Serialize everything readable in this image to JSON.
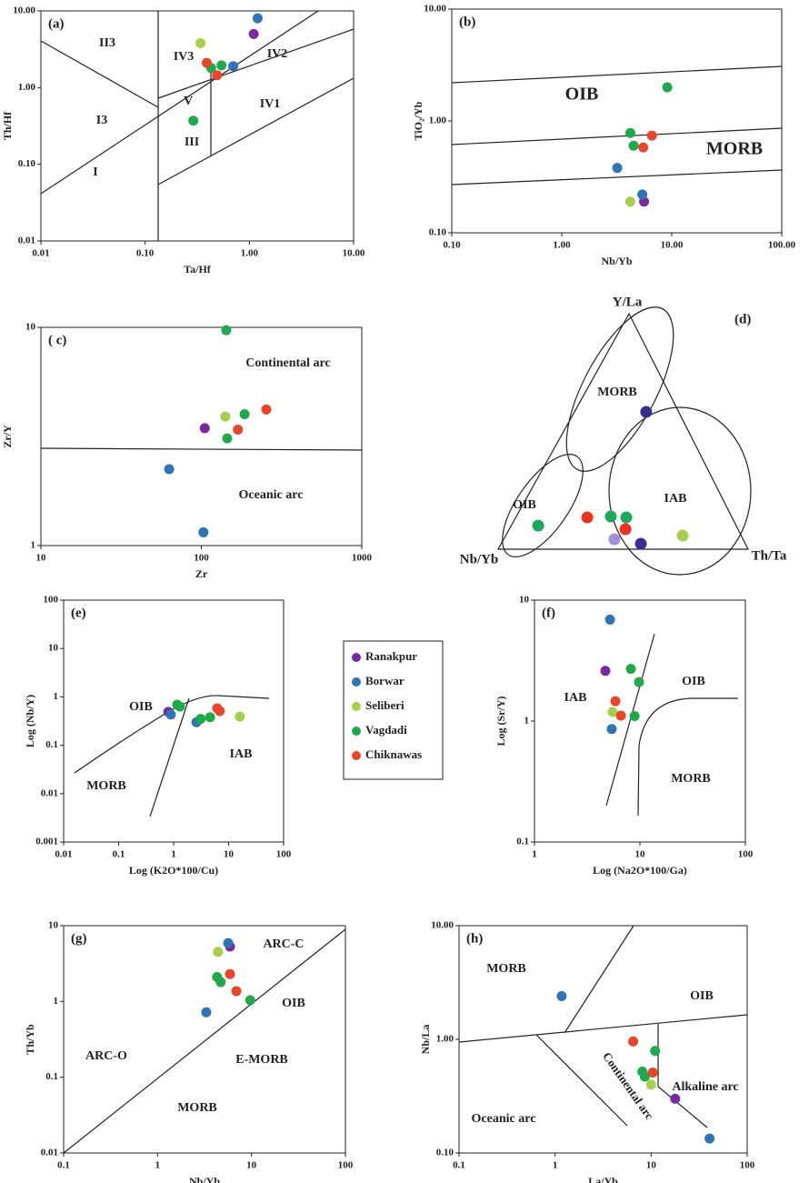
{
  "chart_data": [
    {
      "type": "scatter",
      "panel_label": "(a)",
      "xlabel": "Ta/Hf",
      "ylabel": "Th/Hf",
      "xscale": "log",
      "yscale": "log",
      "xlim": [
        0.01,
        10
      ],
      "ylim": [
        0.01,
        10
      ],
      "xticks": [
        {
          "value": 0.01,
          "label": "0.01"
        },
        {
          "value": 0.1,
          "label": "0.10"
        },
        {
          "value": 1,
          "label": "1.00"
        },
        {
          "value": 10,
          "label": "10.00"
        }
      ],
      "yticks": [
        {
          "value": 0.01,
          "label": "0.01"
        },
        {
          "value": 0.1,
          "label": "0.10"
        },
        {
          "value": 1,
          "label": "1.00"
        },
        {
          "value": 10,
          "label": "10.00"
        }
      ],
      "annotations": [
        "II3",
        "IV3",
        "IV2",
        "I3",
        "V",
        "IV1",
        "III",
        "I"
      ],
      "series": [
        {
          "color": "#7a2aa0",
          "x": [
            1.1
          ],
          "values": [
            5
          ]
        },
        {
          "color": "#2f74b5",
          "x": [
            1.2,
            0.7
          ],
          "values": [
            8,
            1.9
          ]
        },
        {
          "color": "#a6cf4c",
          "x": [
            0.34
          ],
          "values": [
            3.8
          ]
        },
        {
          "color": "#20a94a",
          "x": [
            0.54,
            0.43,
            0.29
          ],
          "values": [
            1.95,
            1.8,
            0.37
          ]
        },
        {
          "color": "#e7462b",
          "x": [
            0.39,
            0.49
          ],
          "values": [
            2.1,
            1.45
          ]
        }
      ]
    },
    {
      "type": "scatter",
      "panel_label": "(b)",
      "xlabel": "Nb/Yb",
      "ylabel": "TiO₂/Yb",
      "xscale": "log",
      "yscale": "log",
      "xlim": [
        0.1,
        100
      ],
      "ylim": [
        0.1,
        10
      ],
      "xticks": [
        {
          "value": 0.1,
          "label": "0.10"
        },
        {
          "value": 1,
          "label": "1.00"
        },
        {
          "value": 10,
          "label": "10.00"
        },
        {
          "value": 100,
          "label": "100.00"
        }
      ],
      "yticks": [
        {
          "value": 0.1,
          "label": "0.10"
        },
        {
          "value": 1,
          "label": "1.00"
        },
        {
          "value": 10,
          "label": "10.00"
        }
      ],
      "annotations": [
        "OIB",
        "MORB"
      ],
      "series": [
        {
          "color": "#7a2aa0",
          "x": [
            5.6
          ],
          "values": [
            0.19
          ]
        },
        {
          "color": "#2f74b5",
          "x": [
            3.2,
            5.4
          ],
          "values": [
            0.38,
            0.22
          ]
        },
        {
          "color": "#a6cf4c",
          "x": [
            4.2
          ],
          "values": [
            0.19
          ]
        },
        {
          "color": "#20a94a",
          "x": [
            9.1,
            4.2,
            4.5
          ],
          "values": [
            2.0,
            0.78,
            0.6
          ]
        },
        {
          "color": "#e7462b",
          "x": [
            6.6,
            5.5
          ],
          "values": [
            0.74,
            0.58
          ]
        }
      ]
    },
    {
      "type": "scatter",
      "panel_label": "( c)",
      "xlabel": "Zr",
      "ylabel": "Zr/Y",
      "xscale": "log",
      "yscale": "log",
      "xlim": [
        10,
        1000
      ],
      "ylim": [
        1,
        10
      ],
      "xticks": [
        10,
        100,
        1000
      ],
      "yticks": [
        1,
        10
      ],
      "annotations": [
        "Continental arc",
        "Oceanic arc"
      ],
      "series": [
        {
          "color": "#7a2aa0",
          "x": [
            105
          ],
          "values": [
            3.45
          ]
        },
        {
          "color": "#2f74b5",
          "x": [
            63,
            103
          ],
          "values": [
            2.24,
            1.15
          ]
        },
        {
          "color": "#a6cf4c",
          "x": [
            141
          ],
          "values": [
            3.9
          ]
        },
        {
          "color": "#20a94a",
          "x": [
            143,
            186,
            145
          ],
          "values": [
            9.7,
            4.0,
            3.1
          ]
        },
        {
          "color": "#e7462b",
          "x": [
            254,
            169
          ],
          "values": [
            4.2,
            3.4
          ]
        }
      ]
    },
    {
      "type": "ternary",
      "panel_label": "(d)",
      "vertices": [
        "Y/La",
        "Nb/Yb",
        "Th/Ta"
      ],
      "annotations": [
        "MORB",
        "OIB",
        "IAB"
      ],
      "series": [
        {
          "color": "#3b2d8f",
          "x": [
            0.287,
            0.559
          ],
          "values": [
            0.583,
            0.023
          ]
        },
        {
          "color": "#a58fd6",
          "x": [
            0.443
          ],
          "values": [
            0.042
          ]
        },
        {
          "color": "#a6cf4c",
          "x": [
            0.708
          ],
          "values": [
            0.058
          ]
        },
        {
          "color": "#1fa85a",
          "x": [
            0.108,
            0.378,
            0.442
          ],
          "values": [
            0.1,
            0.139,
            0.135
          ]
        },
        {
          "color": "#e8341f",
          "x": [
            0.286,
            0.465
          ],
          "values": [
            0.135,
            0.085
          ]
        }
      ]
    },
    {
      "type": "scatter",
      "panel_label": "(e)",
      "xlabel": "Log (K2O*100/Cu)",
      "ylabel": "Log (Nb/Y)",
      "xscale": "log",
      "yscale": "log",
      "xlim": [
        0.01,
        100
      ],
      "ylim": [
        0.001,
        100
      ],
      "xticks": [
        0.01,
        0.1,
        1,
        10,
        100
      ],
      "yticks": [
        0.001,
        0.01,
        0.1,
        1,
        10,
        100
      ],
      "annotations": [
        "OIB",
        "IAB",
        "MORB"
      ],
      "series": [
        {
          "color": "#7a2aa0",
          "x": [
            0.8
          ],
          "values": [
            0.49
          ]
        },
        {
          "color": "#2f74b5",
          "x": [
            0.89,
            2.6
          ],
          "values": [
            0.43,
            0.3
          ]
        },
        {
          "color": "#a6cf4c",
          "x": [
            16
          ],
          "values": [
            0.39
          ]
        },
        {
          "color": "#20a94a",
          "x": [
            1.16,
            1.3,
            3.1,
            4.6
          ],
          "values": [
            0.69,
            0.63,
            0.35,
            0.38
          ]
        },
        {
          "color": "#e7462b",
          "x": [
            6.2,
            6.9
          ],
          "values": [
            0.58,
            0.51
          ]
        }
      ]
    },
    {
      "type": "scatter",
      "panel_label": "(f)",
      "xlabel": "Log (Na2O*100/Ga)",
      "ylabel": "Log (Sr/Y)",
      "xscale": "log",
      "yscale": "log",
      "xlim": [
        1,
        100
      ],
      "ylim": [
        0.1,
        10
      ],
      "xticks": [
        1,
        10,
        100
      ],
      "yticks": [
        0.1,
        1,
        10
      ],
      "annotations": [
        "IAB",
        "OIB",
        "MORB"
      ],
      "series": [
        {
          "color": "#7a2aa0",
          "x": [
            4.7
          ],
          "values": [
            2.6
          ]
        },
        {
          "color": "#2f74b5",
          "x": [
            5.2,
            5.4
          ],
          "values": [
            6.9,
            0.86
          ]
        },
        {
          "color": "#a6cf4c",
          "x": [
            5.5
          ],
          "values": [
            1.19
          ]
        },
        {
          "color": "#20a94a",
          "x": [
            8.2,
            9.8,
            8.9
          ],
          "values": [
            2.7,
            2.1,
            1.1
          ]
        },
        {
          "color": "#e7462b",
          "x": [
            5.85,
            6.6
          ],
          "values": [
            1.46,
            1.11
          ]
        }
      ]
    },
    {
      "type": "scatter",
      "panel_label": "(g)",
      "xlabel": "Nb/Yb",
      "ylabel": "Th/Yb",
      "xscale": "log",
      "yscale": "log",
      "xlim": [
        0.1,
        100
      ],
      "ylim": [
        0.01,
        10
      ],
      "xticks": [
        0.1,
        1,
        10,
        100
      ],
      "yticks": [
        0.01,
        0.1,
        1,
        10
      ],
      "annotations": [
        "ARC-C",
        "OIB",
        "ARC-O",
        "E-MORB",
        "MORB"
      ],
      "series": [
        {
          "color": "#7a2aa0",
          "x": [
            5.9
          ],
          "values": [
            5.3
          ]
        },
        {
          "color": "#2f74b5",
          "x": [
            5.65,
            3.3
          ],
          "values": [
            5.9,
            0.72
          ]
        },
        {
          "color": "#a6cf4c",
          "x": [
            4.4
          ],
          "values": [
            4.5
          ]
        },
        {
          "color": "#20a94a",
          "x": [
            4.3,
            4.7,
            9.7
          ],
          "values": [
            2.1,
            1.8,
            1.04
          ]
        },
        {
          "color": "#e7462b",
          "x": [
            5.9,
            6.9
          ],
          "values": [
            2.3,
            1.37
          ]
        }
      ]
    },
    {
      "type": "scatter",
      "panel_label": "(h)",
      "xlabel": "La/Yb",
      "ylabel": "Nb/La",
      "xscale": "log",
      "yscale": "log",
      "xlim": [
        0.1,
        100
      ],
      "ylim": [
        0.1,
        10
      ],
      "xticks": [
        0.1,
        1,
        10,
        100
      ],
      "yticks": [
        {
          "value": 0.1,
          "label": "0.10"
        },
        {
          "value": 1,
          "label": "1.00"
        },
        {
          "value": 10,
          "label": "10.00"
        }
      ],
      "annotations": [
        "MORB",
        "OIB",
        "Continental arc",
        "Alkaline arc",
        "Oceanic arc"
      ],
      "series": [
        {
          "color": "#7a2aa0",
          "x": [
            17.8
          ],
          "values": [
            0.3
          ]
        },
        {
          "color": "#2f74b5",
          "x": [
            1.17,
            40.6
          ],
          "values": [
            2.4,
            0.134
          ]
        },
        {
          "color": "#a6cf4c",
          "x": [
            10
          ],
          "values": [
            0.4
          ]
        },
        {
          "color": "#20a94a",
          "x": [
            11,
            8.1,
            8.6
          ],
          "values": [
            0.79,
            0.52,
            0.47
          ]
        },
        {
          "color": "#e7462b",
          "x": [
            6.5,
            10.4
          ],
          "values": [
            0.96,
            0.51
          ]
        }
      ]
    }
  ],
  "legend": {
    "series": [
      {
        "name": "Ranakpur",
        "color": "#7a2aa0"
      },
      {
        "name": "Borwar",
        "color": "#2f74b5"
      },
      {
        "name": "Seliberi",
        "color": "#a6cf4c"
      },
      {
        "name": "Vagdadi",
        "color": "#20a94a"
      },
      {
        "name": "Chiknawas",
        "color": "#e7462b"
      }
    ]
  }
}
